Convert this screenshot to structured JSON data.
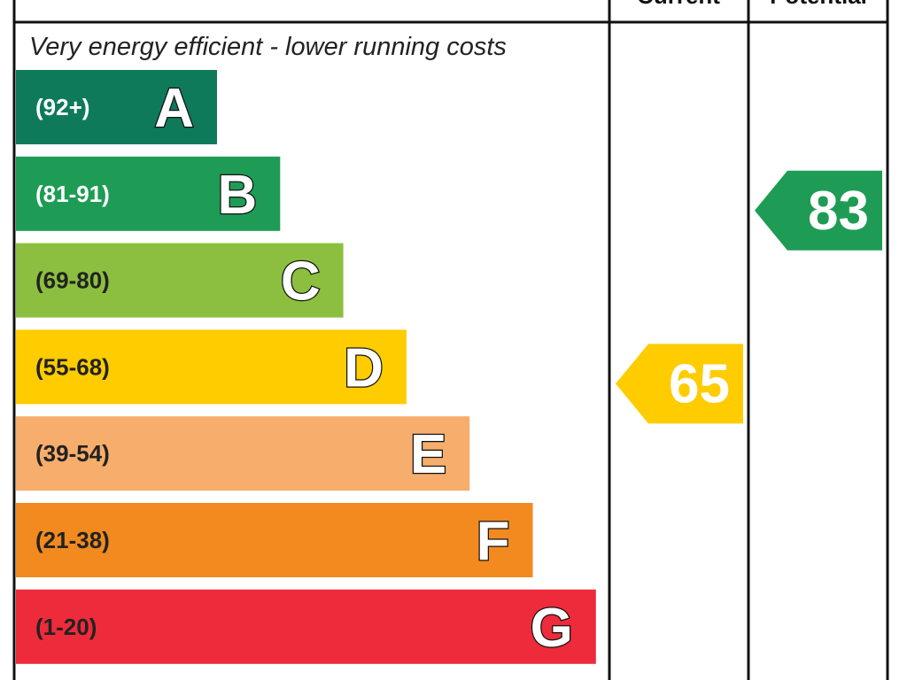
{
  "chart_data": {
    "type": "bar",
    "top_caption": "Very energy efficient - lower running costs",
    "column_headers": [
      "Current",
      "Potential"
    ],
    "bands": [
      {
        "letter": "A",
        "range": "(92+)",
        "color": "#0e7a5a"
      },
      {
        "letter": "B",
        "range": "(81-91)",
        "color": "#1e9c55"
      },
      {
        "letter": "C",
        "range": "(69-80)",
        "color": "#8cbf3f"
      },
      {
        "letter": "D",
        "range": "(55-68)",
        "color": "#ffcc00"
      },
      {
        "letter": "E",
        "range": "(39-54)",
        "color": "#f7ad6b"
      },
      {
        "letter": "F",
        "range": "(21-38)",
        "color": "#f28a1f"
      },
      {
        "letter": "G",
        "range": "(1-20)",
        "color": "#ee2b3b"
      }
    ],
    "current": {
      "value": 65,
      "band": "D",
      "color": "#ffcc00"
    },
    "potential": {
      "value": 83,
      "band": "B",
      "color": "#1e9c55"
    }
  }
}
